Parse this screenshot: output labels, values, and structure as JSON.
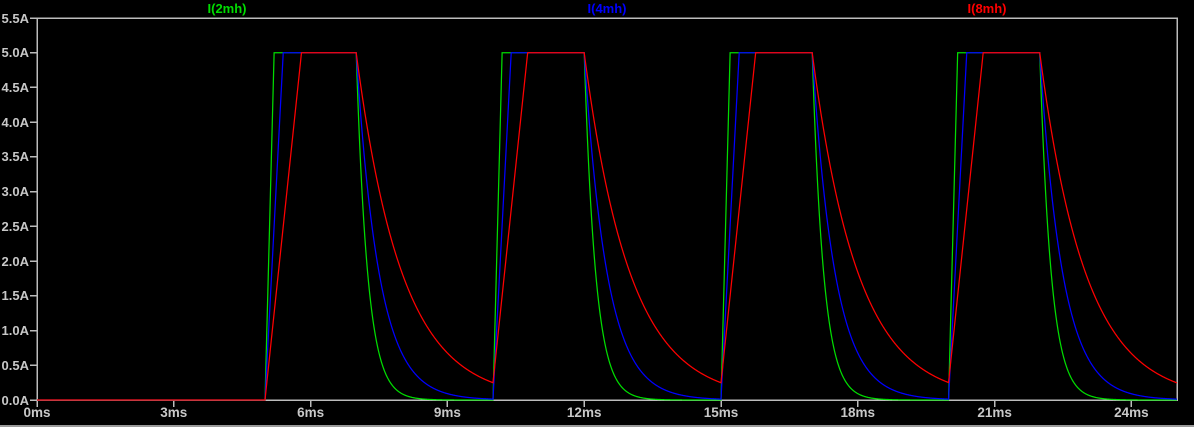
{
  "window": {
    "background_color": "#000000",
    "bottom_edge_color": "#9a9a9a"
  },
  "plot": {
    "frame_color": "#bcbcbc",
    "tick_label_color": "#c8c8c8"
  },
  "chart_data": {
    "type": "line",
    "title": "",
    "description": "Inductor current waveforms: periodic ramp-up to a 5A limit while switched on, exponential decay while switched off. Smaller inductance rises and decays fastest.",
    "x_unit": "ms",
    "y_unit": "A",
    "x_range_ms": [
      0,
      25
    ],
    "y_range_A": [
      0,
      5.5
    ],
    "x_tick_step_ms": 3,
    "y_tick_step_A": 0.5,
    "x_tick_labels": [
      "0ms",
      "3ms",
      "6ms",
      "9ms",
      "12ms",
      "15ms",
      "18ms",
      "21ms",
      "24ms"
    ],
    "y_tick_labels_top_to_bottom": [
      "5.5A",
      "5.0A",
      "4.5A",
      "4.0A",
      "3.5A",
      "3.0A",
      "2.5A",
      "2.0A",
      "1.5A",
      "1.0A",
      "0.5A",
      "0.0A"
    ],
    "amplitude_A": 5.0,
    "period_ms": 5,
    "on_time_ms": 2,
    "pulse_on_intervals_ms": [
      [
        5,
        7
      ],
      [
        10,
        12
      ],
      [
        15,
        17
      ],
      [
        20,
        22
      ]
    ],
    "legend_position": "top, spread at 1/6, 1/2 and 5/6 of plot width",
    "grid": false,
    "series": [
      {
        "name": "I(2mh)",
        "color": "#00dc00",
        "inductance_mH": 2,
        "rise_slope_A_per_ms": 25,
        "decay_tau_ms": 0.25,
        "peak_A": 5.0,
        "residual_at_next_pulse_A": 0.0
      },
      {
        "name": "I(4mh)",
        "color": "#0000ff",
        "inductance_mH": 4,
        "rise_slope_A_per_ms": 12.5,
        "decay_tau_ms": 0.5,
        "peak_A": 5.0,
        "residual_at_next_pulse_A": 0.02
      },
      {
        "name": "I(8mh)",
        "color": "#ff0000",
        "inductance_mH": 8,
        "rise_slope_A_per_ms": 6.25,
        "decay_tau_ms": 1.0,
        "peak_A": 5.0,
        "residual_at_next_pulse_A": 0.25
      }
    ]
  }
}
